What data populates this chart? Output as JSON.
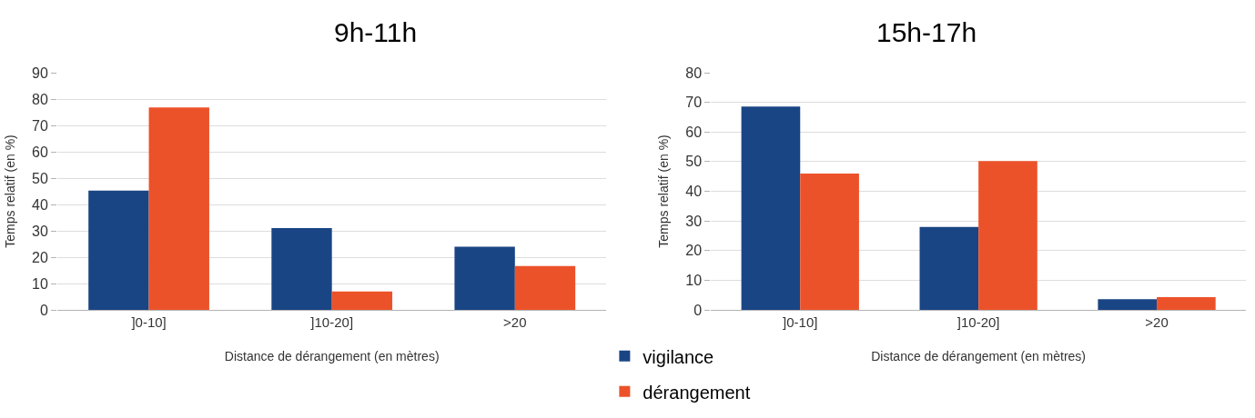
{
  "chart_data": [
    {
      "type": "bar",
      "title": "9h-11h",
      "xlabel": "Distance de dérangement (en mètres)",
      "ylabel": "Temps relatif (en %)",
      "categories": [
        "]0-10]",
        "]10-20]",
        ">20"
      ],
      "series": [
        {
          "name": "vigilance",
          "color": "#1a4584",
          "values": [
            45.3,
            31,
            24
          ]
        },
        {
          "name": "dérangement",
          "color": "#ec522a",
          "values": [
            76.8,
            7,
            16.6
          ]
        }
      ],
      "ylim": [
        0,
        90
      ],
      "yticks": [
        0,
        10,
        20,
        30,
        40,
        50,
        60,
        70,
        80,
        90
      ],
      "grid": "y",
      "legend": "bottom right"
    },
    {
      "type": "bar",
      "title": "15h-17h",
      "xlabel": "Distance de dérangement (en mètres)",
      "ylabel": "Temps relatif (en %)",
      "categories": [
        "]0-10]",
        "]10-20]",
        ">20"
      ],
      "series": [
        {
          "name": "vigilance",
          "color": "#1a4584",
          "values": [
            68.6,
            28,
            3.6
          ]
        },
        {
          "name": "dérangement",
          "color": "#ec522a",
          "values": [
            46,
            50.2,
            4.3
          ]
        }
      ],
      "ylim": [
        0,
        80
      ],
      "yticks": [
        0,
        10,
        20,
        30,
        40,
        50,
        60,
        70,
        80
      ],
      "grid": "y",
      "legend": "bottom left"
    }
  ]
}
